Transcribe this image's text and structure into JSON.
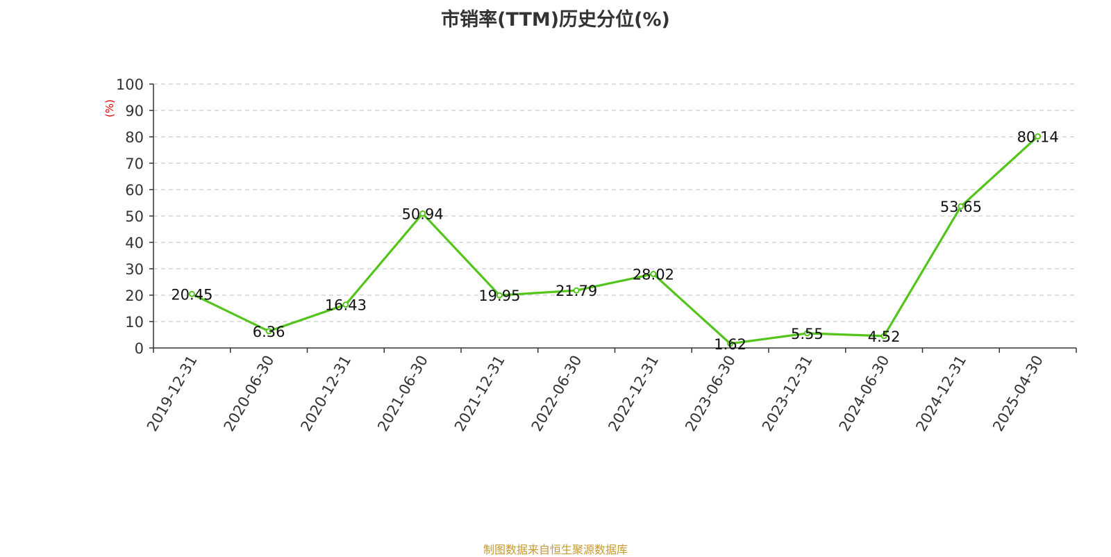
{
  "chart_data": {
    "type": "line",
    "title": "市销率(TTM)历史分位(%)",
    "ylabel": "(%)",
    "xlabel": "",
    "ylim": [
      0,
      100
    ],
    "yticks": [
      0,
      10,
      20,
      30,
      40,
      50,
      60,
      70,
      80,
      90,
      100
    ],
    "grid": "horizontal-dashed",
    "categories": [
      "2019-12-31",
      "2020-06-30",
      "2020-12-31",
      "2021-06-30",
      "2021-12-31",
      "2022-06-30",
      "2022-12-31",
      "2023-06-30",
      "2023-12-31",
      "2024-06-30",
      "2024-12-31",
      "2025-04-30"
    ],
    "series": [
      {
        "values": [
          20.45,
          6.36,
          16.43,
          50.94,
          19.95,
          21.79,
          28.02,
          1.62,
          5.55,
          4.52,
          53.65,
          80.14
        ],
        "labels": [
          "20.45",
          "6.36",
          "16.43",
          "50.94",
          "19.95",
          "21.79",
          "28.02",
          "1.62",
          "5.55",
          "4.52",
          "53.65",
          "80.14"
        ],
        "color": "#52c41a"
      }
    ],
    "ylabel_color": "#e60000",
    "axis_color": "#333333",
    "grid_color": "#cccccc"
  },
  "footer": {
    "source": "制图数据来自恒生聚源数据库",
    "source_color": "#c59a2f"
  }
}
